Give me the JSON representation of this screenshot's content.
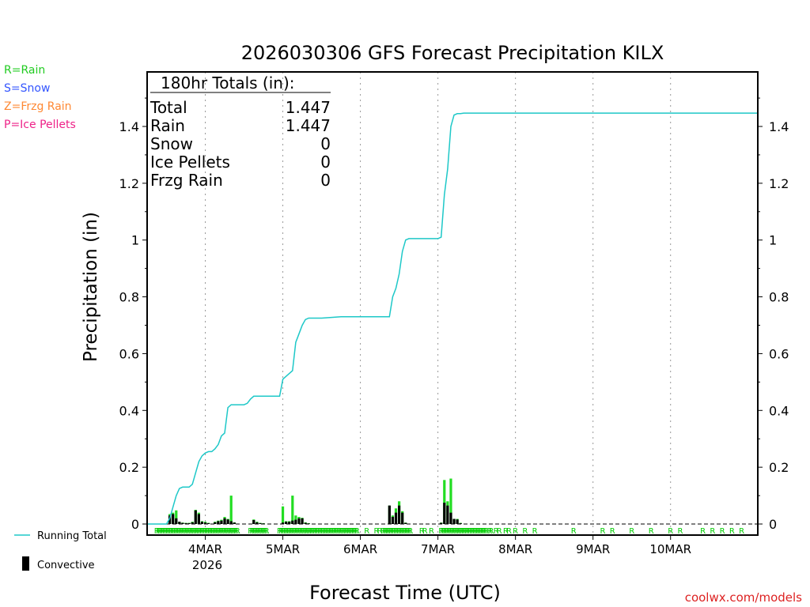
{
  "chart_data": {
    "type": "bar+line",
    "title": "2026030306 GFS Forecast Precipitation KILX",
    "xlabel": "Forecast Time (UTC)",
    "ylabel": "Precipitation (in)",
    "ylim": [
      0,
      1.6
    ],
    "yticks": [
      "0",
      "0.2",
      "0.4",
      "0.6",
      "0.8",
      "1",
      "1.2",
      "1.4"
    ],
    "yticks_values": [
      0,
      0.2,
      0.4,
      0.6,
      0.8,
      1.0,
      1.2,
      1.4
    ],
    "xlim_hours": [
      0,
      189
    ],
    "xticks": [
      {
        "hour": 18,
        "label": "4MAR"
      },
      {
        "hour": 42,
        "label": "5MAR"
      },
      {
        "hour": 66,
        "label": "6MAR"
      },
      {
        "hour": 90,
        "label": "7MAR"
      },
      {
        "hour": 114,
        "label": "8MAR"
      },
      {
        "hour": 138,
        "label": "9MAR"
      },
      {
        "hour": 162,
        "label": "10MAR"
      }
    ],
    "year_label": "2026",
    "type_legend": [
      {
        "text": "R=Rain",
        "color": "#22cc22"
      },
      {
        "text": "S=Snow",
        "color": "#3355ff"
      },
      {
        "text": "Z=Frzg Rain",
        "color": "#ff8833"
      },
      {
        "text": "P=Ice Pellets",
        "color": "#ee2288"
      }
    ],
    "series_legend": {
      "running_total": "Running Total",
      "convective": "Convective"
    },
    "totals_box": {
      "header": "180hr Totals (in):",
      "rows": [
        {
          "label": "Total",
          "value": "1.447"
        },
        {
          "label": "Rain",
          "value": "1.447"
        },
        {
          "label": "Snow",
          "value": "0"
        },
        {
          "label": "Ice Pellets",
          "value": "0"
        },
        {
          "label": "Frzg Rain",
          "value": "0"
        }
      ]
    },
    "credit": "coolwx.com/models",
    "running_total": [
      [
        0,
        0
      ],
      [
        6,
        0
      ],
      [
        7,
        0.02
      ],
      [
        8,
        0.06
      ],
      [
        9,
        0.1
      ],
      [
        10,
        0.125
      ],
      [
        11,
        0.13
      ],
      [
        12,
        0.13
      ],
      [
        13,
        0.13
      ],
      [
        14,
        0.14
      ],
      [
        15,
        0.18
      ],
      [
        16,
        0.22
      ],
      [
        17,
        0.24
      ],
      [
        18,
        0.25
      ],
      [
        19,
        0.255
      ],
      [
        20,
        0.255
      ],
      [
        21,
        0.265
      ],
      [
        22,
        0.28
      ],
      [
        23,
        0.31
      ],
      [
        24,
        0.32
      ],
      [
        25,
        0.41
      ],
      [
        26,
        0.42
      ],
      [
        27,
        0.42
      ],
      [
        28,
        0.42
      ],
      [
        29,
        0.42
      ],
      [
        30,
        0.42
      ],
      [
        31,
        0.425
      ],
      [
        32,
        0.44
      ],
      [
        33,
        0.45
      ],
      [
        34,
        0.45
      ],
      [
        35,
        0.45
      ],
      [
        36,
        0.45
      ],
      [
        37,
        0.45
      ],
      [
        38,
        0.45
      ],
      [
        39,
        0.45
      ],
      [
        40,
        0.45
      ],
      [
        41,
        0.45
      ],
      [
        42,
        0.51
      ],
      [
        43,
        0.52
      ],
      [
        44,
        0.53
      ],
      [
        45,
        0.54
      ],
      [
        46,
        0.64
      ],
      [
        47,
        0.67
      ],
      [
        48,
        0.7
      ],
      [
        49,
        0.72
      ],
      [
        50,
        0.725
      ],
      [
        52,
        0.725
      ],
      [
        54,
        0.725
      ],
      [
        60,
        0.73
      ],
      [
        66,
        0.73
      ],
      [
        72,
        0.73
      ],
      [
        75,
        0.73
      ],
      [
        76,
        0.8
      ],
      [
        77,
        0.83
      ],
      [
        78,
        0.88
      ],
      [
        79,
        0.96
      ],
      [
        80,
        1.0
      ],
      [
        81,
        1.005
      ],
      [
        84,
        1.005
      ],
      [
        88,
        1.005
      ],
      [
        90,
        1.005
      ],
      [
        91,
        1.01
      ],
      [
        92,
        1.16
      ],
      [
        93,
        1.25
      ],
      [
        94,
        1.4
      ],
      [
        95,
        1.44
      ],
      [
        96,
        1.445
      ],
      [
        97,
        1.445
      ],
      [
        98,
        1.447
      ],
      [
        120,
        1.447
      ],
      [
        150,
        1.447
      ],
      [
        180,
        1.447
      ],
      [
        189,
        1.447
      ]
    ],
    "precip_bars": [
      {
        "hour": 7,
        "total": 0.035,
        "conv": 0.03
      },
      {
        "hour": 8,
        "total": 0.04,
        "conv": 0.035
      },
      {
        "hour": 9,
        "total": 0.048,
        "conv": 0.02
      },
      {
        "hour": 10,
        "total": 0.008,
        "conv": 0.008
      },
      {
        "hour": 11,
        "total": 0.005,
        "conv": 0.004
      },
      {
        "hour": 12,
        "total": 0.004,
        "conv": 0.003
      },
      {
        "hour": 13,
        "total": 0.004,
        "conv": 0.003
      },
      {
        "hour": 14,
        "total": 0.008,
        "conv": 0.006
      },
      {
        "hour": 15,
        "total": 0.05,
        "conv": 0.048
      },
      {
        "hour": 16,
        "total": 0.04,
        "conv": 0.035
      },
      {
        "hour": 17,
        "total": 0.01,
        "conv": 0.008
      },
      {
        "hour": 18,
        "total": 0.008,
        "conv": 0.005
      },
      {
        "hour": 19,
        "total": 0.004,
        "conv": 0.003
      },
      {
        "hour": 21,
        "total": 0.008,
        "conv": 0.006
      },
      {
        "hour": 22,
        "total": 0.012,
        "conv": 0.01
      },
      {
        "hour": 23,
        "total": 0.015,
        "conv": 0.012
      },
      {
        "hour": 24,
        "total": 0.025,
        "conv": 0.02
      },
      {
        "hour": 25,
        "total": 0.018,
        "conv": 0.016
      },
      {
        "hour": 26,
        "total": 0.1,
        "conv": 0.01
      },
      {
        "hour": 27,
        "total": 0.006,
        "conv": 0.005
      },
      {
        "hour": 33,
        "total": 0.016,
        "conv": 0.014
      },
      {
        "hour": 34,
        "total": 0.008,
        "conv": 0.006
      },
      {
        "hour": 35,
        "total": 0.004,
        "conv": 0.003
      },
      {
        "hour": 36,
        "total": 0.003,
        "conv": 0.002
      },
      {
        "hour": 42,
        "total": 0.062,
        "conv": 0.005
      },
      {
        "hour": 43,
        "total": 0.01,
        "conv": 0.008
      },
      {
        "hour": 44,
        "total": 0.01,
        "conv": 0.008
      },
      {
        "hour": 45,
        "total": 0.1,
        "conv": 0.012
      },
      {
        "hour": 46,
        "total": 0.03,
        "conv": 0.015
      },
      {
        "hour": 47,
        "total": 0.025,
        "conv": 0.02
      },
      {
        "hour": 48,
        "total": 0.022,
        "conv": 0.02
      },
      {
        "hour": 49,
        "total": 0.006,
        "conv": 0.004
      },
      {
        "hour": 50,
        "total": 0.003,
        "conv": 0.002
      },
      {
        "hour": 75,
        "total": 0.065,
        "conv": 0.065
      },
      {
        "hour": 76,
        "total": 0.03,
        "conv": 0.025
      },
      {
        "hour": 77,
        "total": 0.055,
        "conv": 0.04
      },
      {
        "hour": 78,
        "total": 0.08,
        "conv": 0.065
      },
      {
        "hour": 79,
        "total": 0.045,
        "conv": 0.04
      },
      {
        "hour": 80,
        "total": 0.005,
        "conv": 0.004
      },
      {
        "hour": 91,
        "total": 0.005,
        "conv": 0.004
      },
      {
        "hour": 92,
        "total": 0.155,
        "conv": 0.075
      },
      {
        "hour": 93,
        "total": 0.08,
        "conv": 0.065
      },
      {
        "hour": 94,
        "total": 0.16,
        "conv": 0.04
      },
      {
        "hour": 95,
        "total": 0.018,
        "conv": 0.018
      },
      {
        "hour": 96,
        "total": 0.018,
        "conv": 0.016
      },
      {
        "hour": 97,
        "total": 0.004,
        "conv": 0.003
      }
    ],
    "rain_marker_hours": [
      3,
      3.5,
      4,
      4.5,
      5,
      5.5,
      6,
      6.5,
      7,
      7.5,
      8,
      8.5,
      9,
      9.5,
      10,
      10.5,
      11,
      11.5,
      12,
      12.5,
      13,
      13.5,
      14,
      14.5,
      15,
      15.5,
      16,
      16.5,
      17,
      17.5,
      18,
      18.5,
      19,
      19.5,
      20,
      20.5,
      21,
      21.5,
      22,
      22.5,
      23,
      23.5,
      24,
      24.5,
      25,
      25.5,
      26,
      26.5,
      27,
      27.5,
      28,
      32,
      32.5,
      33,
      33.5,
      34,
      34.5,
      35,
      35.5,
      36,
      36.5,
      37,
      41,
      41.5,
      42,
      42.5,
      43,
      43.5,
      44,
      44.5,
      45,
      45.5,
      46,
      46.5,
      47,
      47.5,
      48,
      48.5,
      49,
      49.5,
      50,
      50.5,
      51,
      51.5,
      52,
      52.5,
      53,
      53.5,
      54,
      54.5,
      55,
      55.5,
      56,
      56.5,
      57,
      57.5,
      58,
      58.5,
      59,
      59.5,
      60,
      60.5,
      61,
      61.5,
      62,
      62.5,
      63,
      63.5,
      64,
      64.5,
      65,
      68,
      71,
      72,
      73,
      73.5,
      74,
      74.5,
      75,
      75.5,
      76,
      76.5,
      77,
      77.5,
      78,
      78.5,
      79,
      79.5,
      80,
      80.5,
      81,
      81.5,
      85,
      86,
      88,
      91,
      91.5,
      92,
      92.5,
      93,
      93.5,
      94,
      94.5,
      95,
      95.5,
      96,
      96.5,
      97,
      97.5,
      98,
      98.5,
      99,
      99.5,
      100,
      100.5,
      101,
      101.5,
      102,
      102.5,
      103,
      103.5,
      104,
      104.5,
      105,
      106,
      106.5,
      108,
      109,
      111,
      112,
      114,
      117,
      120,
      132,
      141,
      144,
      150,
      156,
      162,
      165,
      172,
      175,
      178,
      181,
      184
    ]
  }
}
